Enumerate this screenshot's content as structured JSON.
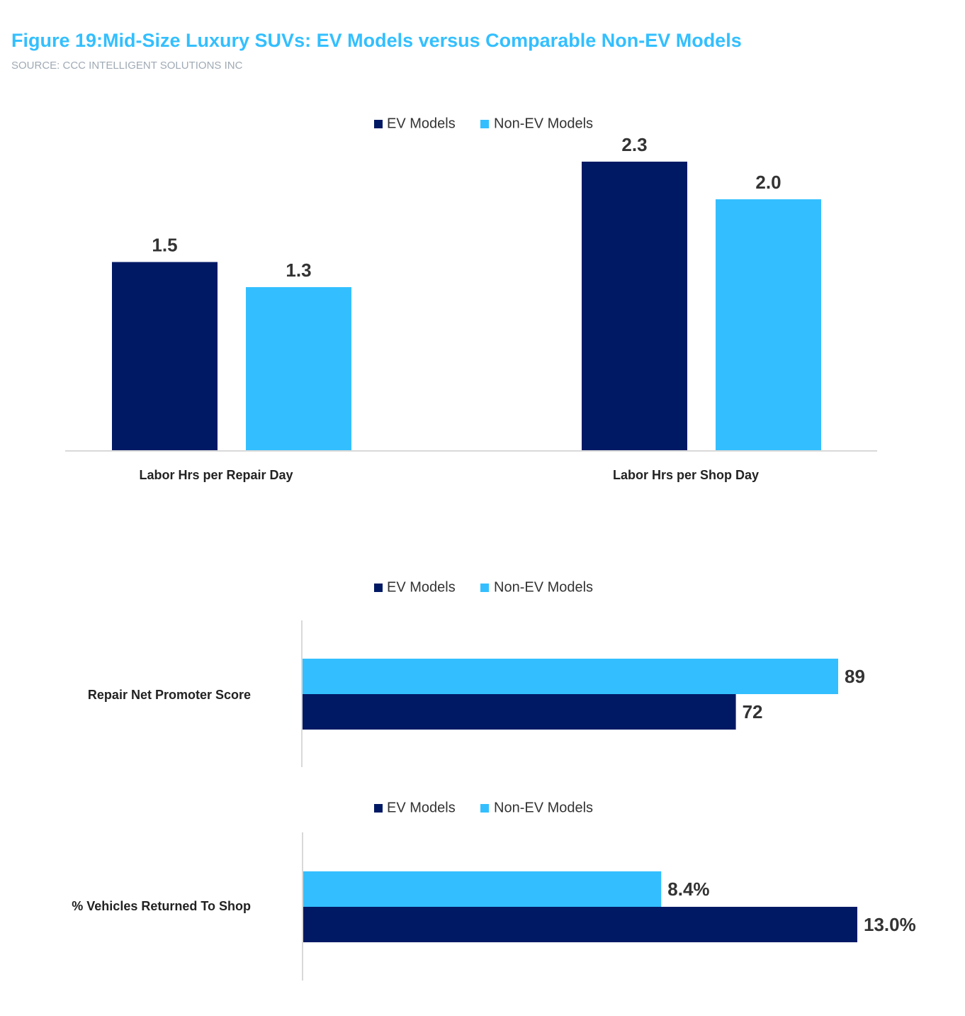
{
  "title": "Figure 19:Mid-Size Luxury SUVs: EV Models versus Comparable Non-EV Models",
  "subtitle": "SOURCE: CCC INTELLIGENT SOLUTIONS INC",
  "chart_data": [
    {
      "type": "bar",
      "categories": [
        "Labor Hrs per Repair Day",
        "Labor Hrs per Shop Day"
      ],
      "series": [
        {
          "name": "EV Models",
          "color": "#001965",
          "values": [
            1.5,
            2.3
          ]
        },
        {
          "name": "Non-EV Models",
          "color": "#33bfff",
          "values": [
            1.3,
            2.0
          ],
          "value_labels": [
            "1.3",
            "2.0"
          ]
        }
      ]
    },
    {
      "type": "barh",
      "categories": [
        "Repair Net Promoter Score"
      ],
      "series": [
        {
          "name": "EV Models",
          "color": "#001965",
          "values": [
            72
          ]
        },
        {
          "name": "Non-EV Models",
          "color": "#33bfff",
          "values": [
            89
          ]
        }
      ]
    },
    {
      "type": "barh",
      "categories": [
        "% Vehicles Returned To Shop"
      ],
      "series": [
        {
          "name": "EV Models",
          "color": "#001965",
          "values": [
            13.0
          ],
          "value_labels": [
            "13.0%"
          ]
        },
        {
          "name": "Non-EV Models",
          "color": "#33bfff",
          "values": [
            8.4
          ],
          "value_labels": [
            "8.4%"
          ]
        }
      ]
    }
  ]
}
